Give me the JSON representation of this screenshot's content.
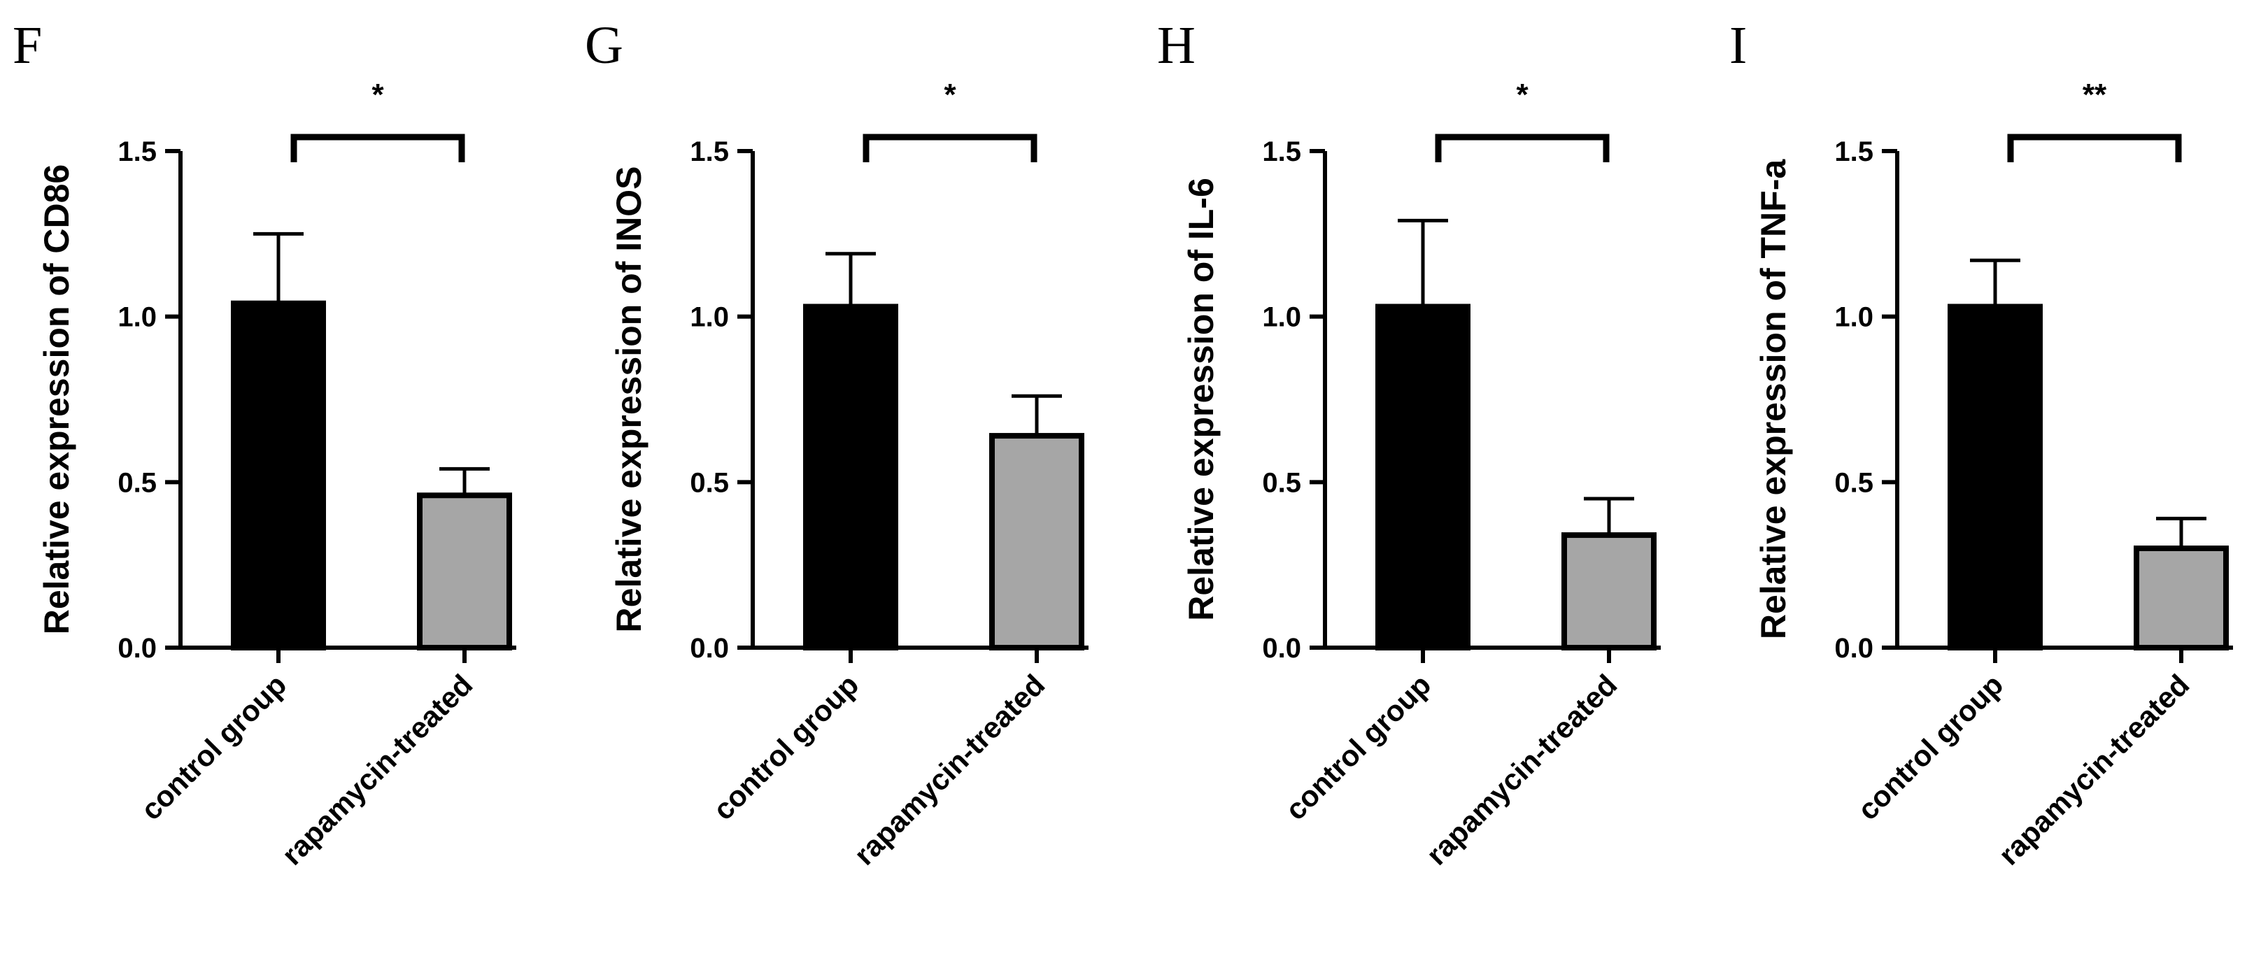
{
  "colors": {
    "control_bar": "#000000",
    "treated_bar": "#a6a6a6",
    "axis": "#000000",
    "background": "#ffffff"
  },
  "chart_data": [
    {
      "panel": "F",
      "type": "bar",
      "ylabel": "Relative expression of CD86",
      "categories": [
        "control group",
        "rapamycin-treated"
      ],
      "values": [
        1.04,
        0.46
      ],
      "errors": [
        0.21,
        0.08
      ],
      "ylim": [
        0,
        1.5
      ],
      "yticks": [
        "0.0",
        "0.5",
        "1.0",
        "1.5"
      ],
      "significance": "*"
    },
    {
      "panel": "G",
      "type": "bar",
      "ylabel": "Relative expression of INOS",
      "categories": [
        "control group",
        "rapamycin-treated"
      ],
      "values": [
        1.03,
        0.64
      ],
      "errors": [
        0.16,
        0.12
      ],
      "ylim": [
        0,
        1.5
      ],
      "yticks": [
        "0.0",
        "0.5",
        "1.0",
        "1.5"
      ],
      "significance": "*"
    },
    {
      "panel": "H",
      "type": "bar",
      "ylabel": "Relative expression of IL-6",
      "categories": [
        "control group",
        "rapamycin-treated"
      ],
      "values": [
        1.03,
        0.34
      ],
      "errors": [
        0.26,
        0.11
      ],
      "ylim": [
        0,
        1.5
      ],
      "yticks": [
        "0.0",
        "0.5",
        "1.0",
        "1.5"
      ],
      "significance": "*"
    },
    {
      "panel": "I",
      "type": "bar",
      "ylabel": "Relative expression of TNF-a",
      "categories": [
        "control group",
        "rapamycin-treated"
      ],
      "values": [
        1.03,
        0.3
      ],
      "errors": [
        0.14,
        0.09
      ],
      "ylim": [
        0,
        1.5
      ],
      "yticks": [
        "0.0",
        "0.5",
        "1.0",
        "1.5"
      ],
      "significance": "**"
    }
  ]
}
